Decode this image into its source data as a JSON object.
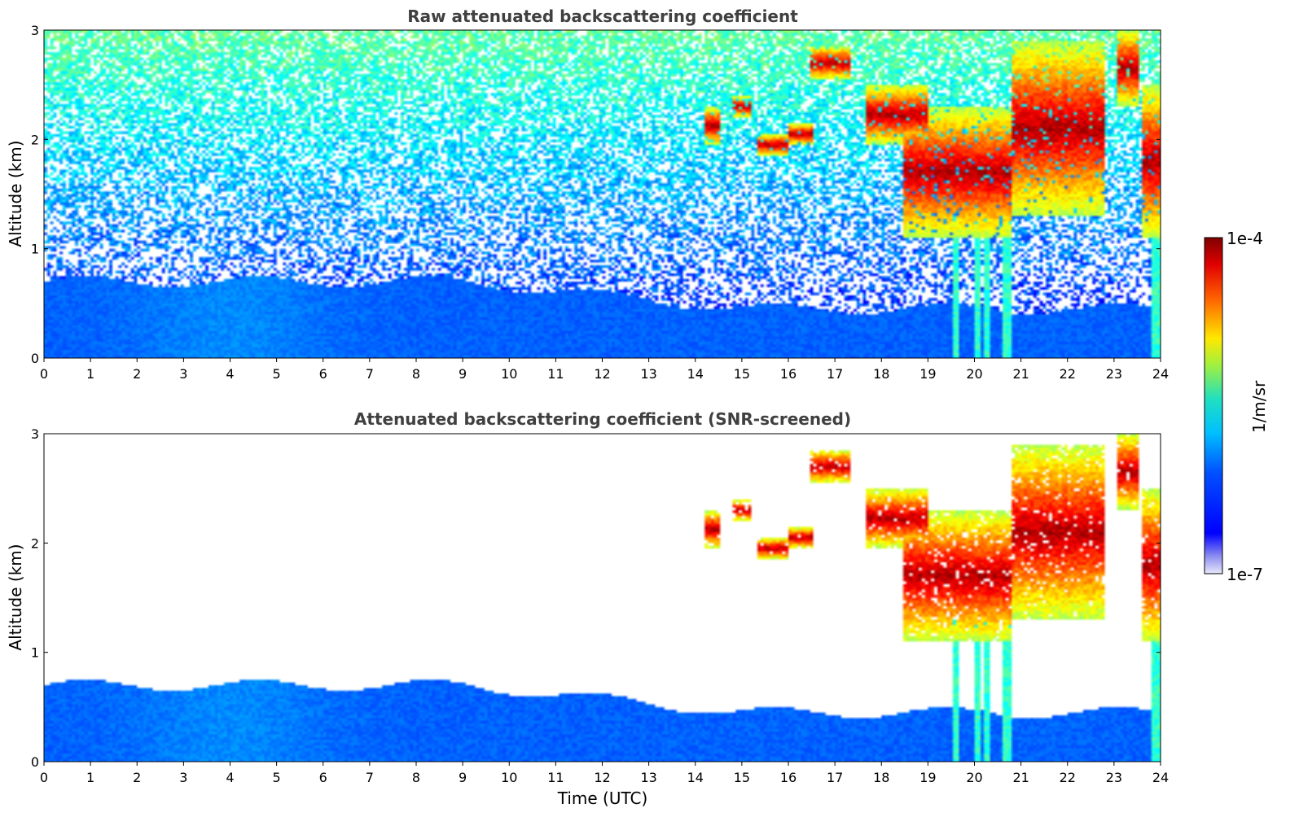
{
  "chart_data": [
    {
      "type": "heatmap",
      "title": "Raw attenuated backscattering coefficient",
      "xlabel": "",
      "ylabel": "Altitude (km)",
      "x_ticks": [
        0,
        1,
        2,
        3,
        4,
        5,
        6,
        7,
        8,
        9,
        10,
        11,
        12,
        13,
        14,
        15,
        16,
        17,
        18,
        19,
        20,
        21,
        22,
        23,
        24
      ],
      "y_ticks": [
        0,
        1,
        2,
        3
      ],
      "xlim": [
        0,
        24
      ],
      "ylim": [
        0,
        3
      ],
      "grid": false,
      "screened": false,
      "boundary_layer_top_km": 0.7,
      "cloud_layers": [
        {
          "t_start": 14.2,
          "t_end": 14.5,
          "z_bottom": 1.95,
          "z_top": 2.3
        },
        {
          "t_start": 14.8,
          "t_end": 15.2,
          "z_bottom": 2.2,
          "z_top": 2.4
        },
        {
          "t_start": 15.3,
          "t_end": 16.0,
          "z_bottom": 1.85,
          "z_top": 2.05
        },
        {
          "t_start": 16.0,
          "t_end": 16.5,
          "z_bottom": 1.95,
          "z_top": 2.15
        },
        {
          "t_start": 16.5,
          "t_end": 17.3,
          "z_bottom": 2.55,
          "z_top": 2.85
        },
        {
          "t_start": 17.7,
          "t_end": 19.0,
          "z_bottom": 1.95,
          "z_top": 2.5
        },
        {
          "t_start": 18.5,
          "t_end": 20.8,
          "z_bottom": 1.1,
          "z_top": 2.3
        },
        {
          "t_start": 20.8,
          "t_end": 22.8,
          "z_bottom": 1.3,
          "z_top": 2.9
        },
        {
          "t_start": 23.1,
          "t_end": 23.5,
          "z_bottom": 2.3,
          "z_top": 3.0
        },
        {
          "t_start": 23.6,
          "t_end": 24.0,
          "z_bottom": 1.1,
          "z_top": 2.5
        }
      ],
      "rain_shafts": [
        19.6,
        20.05,
        20.25,
        20.7,
        23.9
      ]
    },
    {
      "type": "heatmap",
      "title": "Attenuated backscattering coefficient (SNR-screened)",
      "xlabel": "Time (UTC)",
      "ylabel": "Altitude (km)",
      "x_ticks": [
        0,
        1,
        2,
        3,
        4,
        5,
        6,
        7,
        8,
        9,
        10,
        11,
        12,
        13,
        14,
        15,
        16,
        17,
        18,
        19,
        20,
        21,
        22,
        23,
        24
      ],
      "y_ticks": [
        0,
        1,
        2,
        3
      ],
      "xlim": [
        0,
        24
      ],
      "ylim": [
        0,
        3
      ],
      "grid": false,
      "screened": true
    }
  ],
  "colorbar": {
    "label": "1/m/sr",
    "max_label": "1e-4",
    "min_label": "1e-7",
    "scale": "log",
    "colormap": "jet"
  }
}
